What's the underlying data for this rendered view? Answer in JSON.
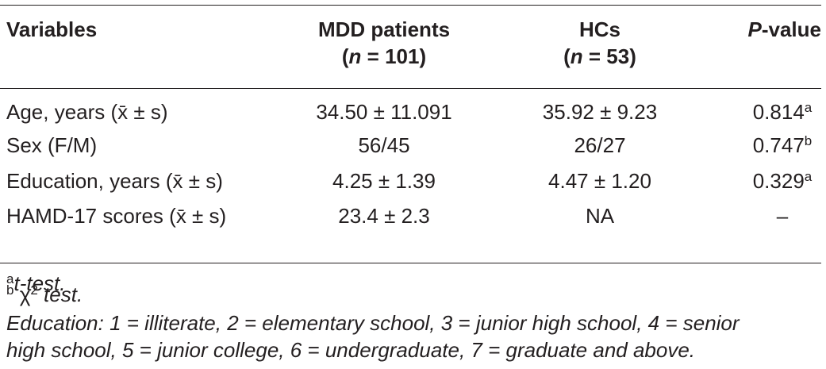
{
  "table": {
    "headers": [
      {
        "label": "Variables"
      },
      {
        "label": "MDD patients",
        "n_symbol": "n",
        "n_value": " = 101"
      },
      {
        "label": "HCs",
        "n_symbol": "n",
        "n_value": " = 53"
      },
      {
        "italic_part": "P",
        "rest": "-value"
      }
    ],
    "rows": [
      {
        "variable": "Age, years (x̄ ± s)",
        "mdd": "34.50 ± 11.091",
        "hc": "35.92 ± 9.23",
        "p": "0.814",
        "p_mark": "a"
      },
      {
        "variable": "Sex (F/M)",
        "mdd": "56/45",
        "hc": "26/27",
        "p": "0.747",
        "p_mark": "b"
      },
      {
        "variable": "Education, years (x̄ ± s)",
        "mdd": "4.25 ± 1.39",
        "hc": "4.47 ± 1.20",
        "p": "0.329",
        "p_mark": "a"
      },
      {
        "variable": "HAMD-17 scores (x̄ ± s)",
        "mdd": "23.4 ± 2.3",
        "hc": "NA",
        "p": "–"
      }
    ]
  },
  "footnotes": [
    {
      "marker": "a",
      "text": "t-test."
    },
    {
      "marker": "b",
      "symbol": " χ",
      "symbol_sup": "2",
      "text": " test."
    },
    {
      "line1": "Education: 1 = illiterate, 2 = elementary school, 3 = junior high school, 4 = senior",
      "line2": "high school, 5 = junior college, 6 = undergraduate, 7 = graduate and above."
    }
  ]
}
